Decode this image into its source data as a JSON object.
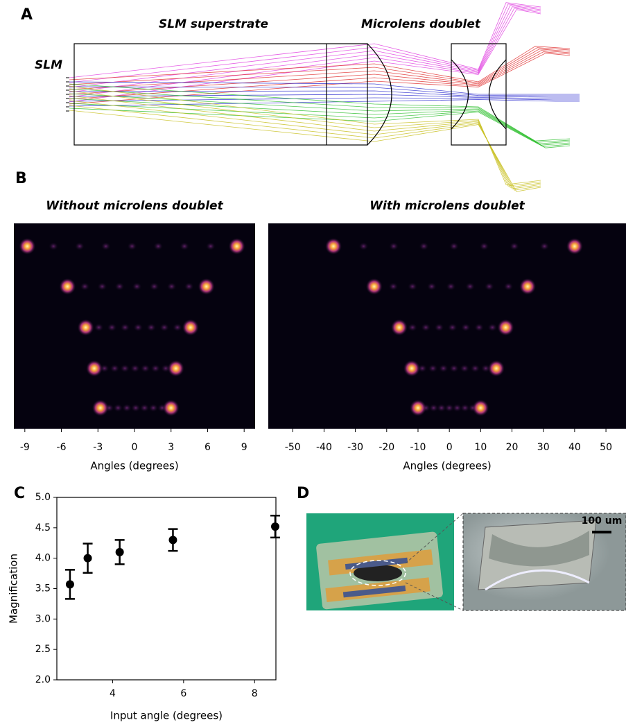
{
  "panel_labels": [
    "A",
    "B",
    "C",
    "D"
  ],
  "diagram": {
    "slm_label": "SLM",
    "superstrate_label": "SLM superstrate",
    "doublet_label": "Microlens doublet"
  },
  "chart_data": [
    {
      "type": "heatmap",
      "title": "Without microlens doublet",
      "xlabel": "Angles (degrees)",
      "xlim": [
        -9.9,
        9.9
      ],
      "xticks": [
        -9,
        -6,
        -3,
        0,
        3,
        6,
        9
      ],
      "rows": [
        [
          -8.8,
          8.4
        ],
        [
          -5.5,
          5.9
        ],
        [
          -4,
          4.6
        ],
        [
          -3.3,
          3.4
        ],
        [
          -2.8,
          3
        ]
      ]
    },
    {
      "type": "heatmap",
      "title": "With microlens doublet",
      "xlabel": "Angles (degrees)",
      "xlim": [
        -57.8,
        56.4
      ],
      "xticks": [
        -50,
        -40,
        -30,
        -20,
        -10,
        0,
        10,
        20,
        30,
        40,
        50
      ],
      "rows": [
        [
          -37,
          40
        ],
        [
          -24,
          25
        ],
        [
          -16,
          18
        ],
        [
          -12,
          15
        ],
        [
          -10,
          10
        ]
      ]
    },
    {
      "type": "errorbar",
      "xlabel": "Input angle (degrees)",
      "ylabel": "Magnification",
      "x": [
        2.8,
        3.3,
        4.2,
        5.7,
        8.58
      ],
      "values": [
        3.57,
        4.0,
        4.1,
        4.3,
        4.52
      ],
      "errors": [
        0.24,
        0.24,
        0.2,
        0.18,
        0.18
      ],
      "xlim": [
        2.43,
        8.6
      ],
      "xticks": [
        4,
        6,
        8
      ],
      "ylim": [
        2,
        5
      ],
      "yticks": [
        {
          "value": 2,
          "label": "2.0"
        },
        {
          "value": 2.5,
          "label": "2.5"
        },
        {
          "value": 3,
          "label": "3.0"
        },
        {
          "value": 3.5,
          "label": "3.5"
        },
        {
          "value": 4,
          "label": "4.0"
        },
        {
          "value": 4.5,
          "label": "4.5"
        },
        {
          "value": 5,
          "label": "5.0"
        }
      ],
      "color": "#000000"
    }
  ],
  "photo": {
    "scale_bar": "100 um"
  }
}
